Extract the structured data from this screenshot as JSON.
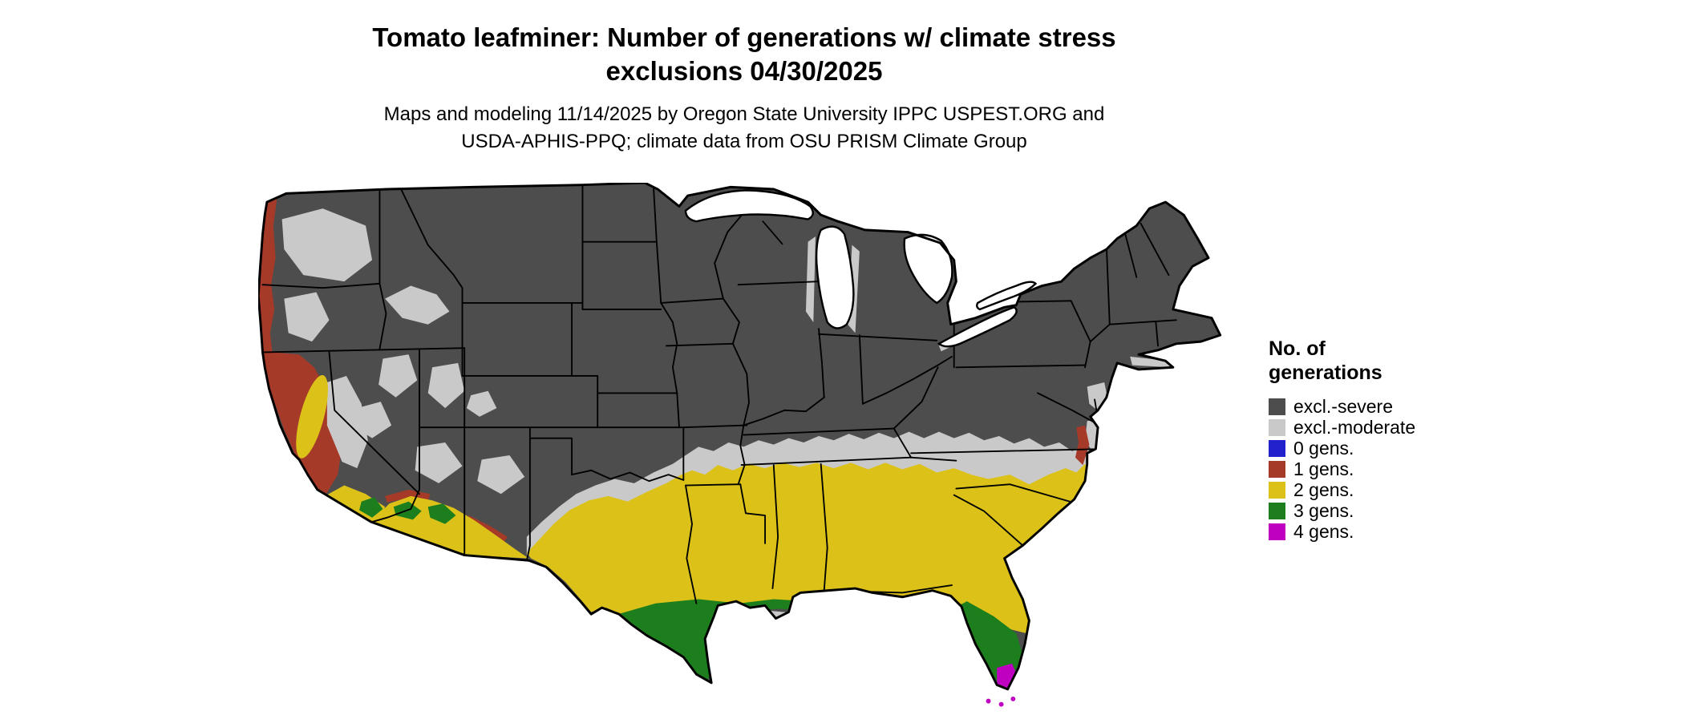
{
  "header": {
    "title_line1": "Tomato leafminer: Number of generations w/ climate stress",
    "title_line2": "exclusions 04/30/2025",
    "subtitle_line1": "Maps and modeling 11/14/2025 by Oregon State University IPPC USPEST.ORG and",
    "subtitle_line2": "USDA-APHIS-PPQ; climate data from OSU PRISM Climate Group"
  },
  "legend": {
    "title_line1": "No. of",
    "title_line2": "generations",
    "items": [
      {
        "key": "excl-severe",
        "label": "excl.-severe",
        "color": "#4d4d4d"
      },
      {
        "key": "excl-moderate",
        "label": "excl.-moderate",
        "color": "#c9c9c9"
      },
      {
        "key": "0-gens",
        "label": "0 gens.",
        "color": "#2222cd"
      },
      {
        "key": "1-gens",
        "label": "1 gens.",
        "color": "#a63a29"
      },
      {
        "key": "2-gens",
        "label": "2 gens.",
        "color": "#dcc218"
      },
      {
        "key": "3-gens",
        "label": "3 gens.",
        "color": "#1d7e1d"
      },
      {
        "key": "4-gens",
        "label": "4 gens.",
        "color": "#c000c0"
      }
    ]
  },
  "map": {
    "region_name": "Continental United States",
    "colors": {
      "severe": "#4d4d4d",
      "moderate": "#c9c9c9",
      "gen0": "#2222cd",
      "gen1": "#a63a29",
      "gen2": "#dcc218",
      "gen3": "#1d7e1d",
      "gen4": "#c000c0",
      "outline": "#000000",
      "water": "#ffffff"
    }
  }
}
